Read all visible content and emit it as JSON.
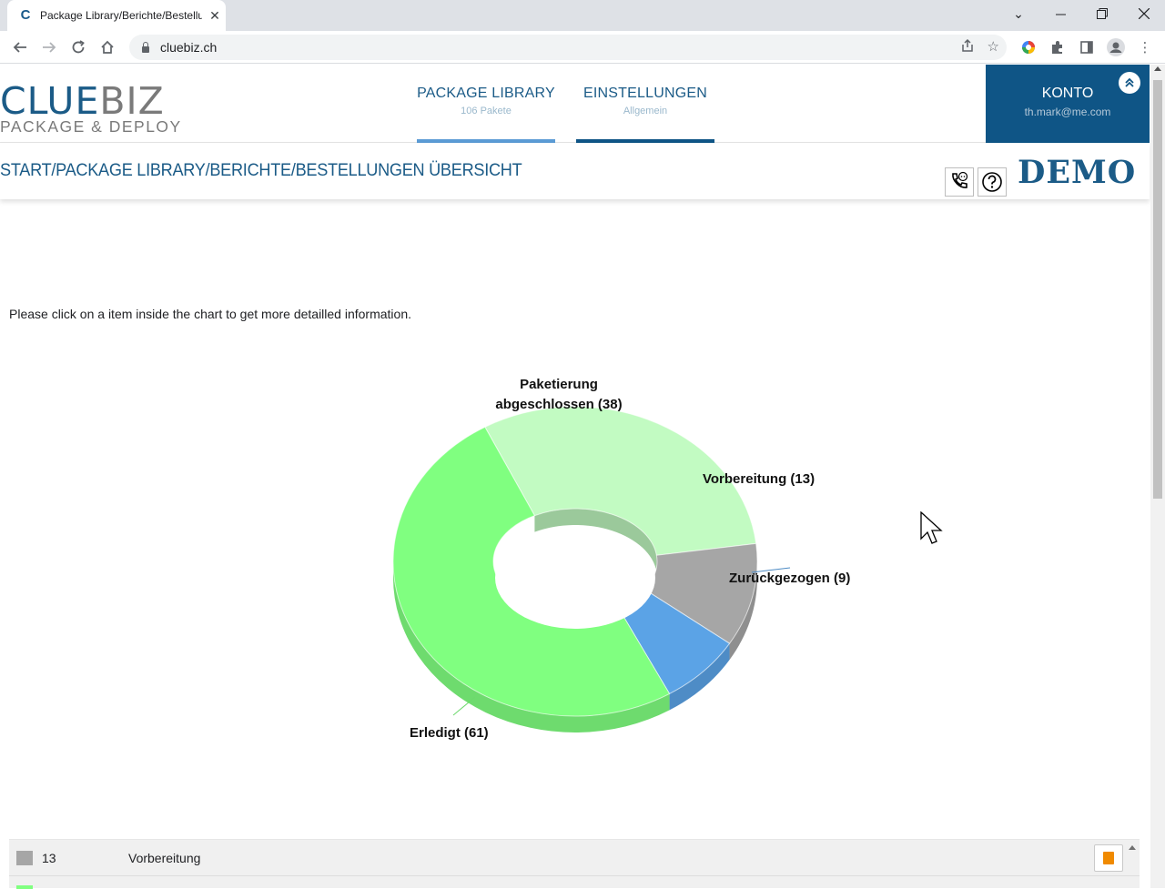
{
  "browser": {
    "tab_title": "Package Library/Berichte/Bestellungen Übersicht",
    "url": "cluebiz.ch",
    "favicon_letter": "C"
  },
  "header": {
    "logo_part1": "CLUE",
    "logo_part2": "BIZ",
    "logo_sub": "PACKAGE & DEPLOY",
    "nav": [
      {
        "label": "PACKAGE LIBRARY",
        "sub": "106 Pakete",
        "bar_color": "#5b9bd5"
      },
      {
        "label": "EINSTELLUNGEN",
        "sub": "Allgemein",
        "bar_color": "#0f5586"
      }
    ],
    "konto": {
      "label": "KONTO",
      "email": "th.mark@me.com"
    }
  },
  "breadcrumb": "START/PACKAGE LIBRARY/BERICHTE/BESTELLUNGEN ÜBERSICHT",
  "demo_label": "DEMO",
  "instruction": "Please click on a item inside the chart to get more detailled information.",
  "chart_data": {
    "type": "pie",
    "title": "",
    "slices": [
      {
        "name": "Paketierung abgeschlossen",
        "value": 38,
        "color": "#c2fbc2",
        "label": "Paketierung abgeschlossen (38)"
      },
      {
        "name": "Vorbereitung",
        "value": 13,
        "color": "#a6a6a6",
        "label": "Vorbereitung (13)"
      },
      {
        "name": "Zurückgezogen",
        "value": 9,
        "color": "#5ba3e6",
        "label": "Zurückgezogen (9)"
      },
      {
        "name": "Erledigt",
        "value": 61,
        "color": "#80ff80",
        "label": "Erledigt (61)"
      }
    ]
  },
  "legend": [
    {
      "count": "13",
      "label": "Vorbereitung",
      "color": "#a6a6a6"
    }
  ]
}
